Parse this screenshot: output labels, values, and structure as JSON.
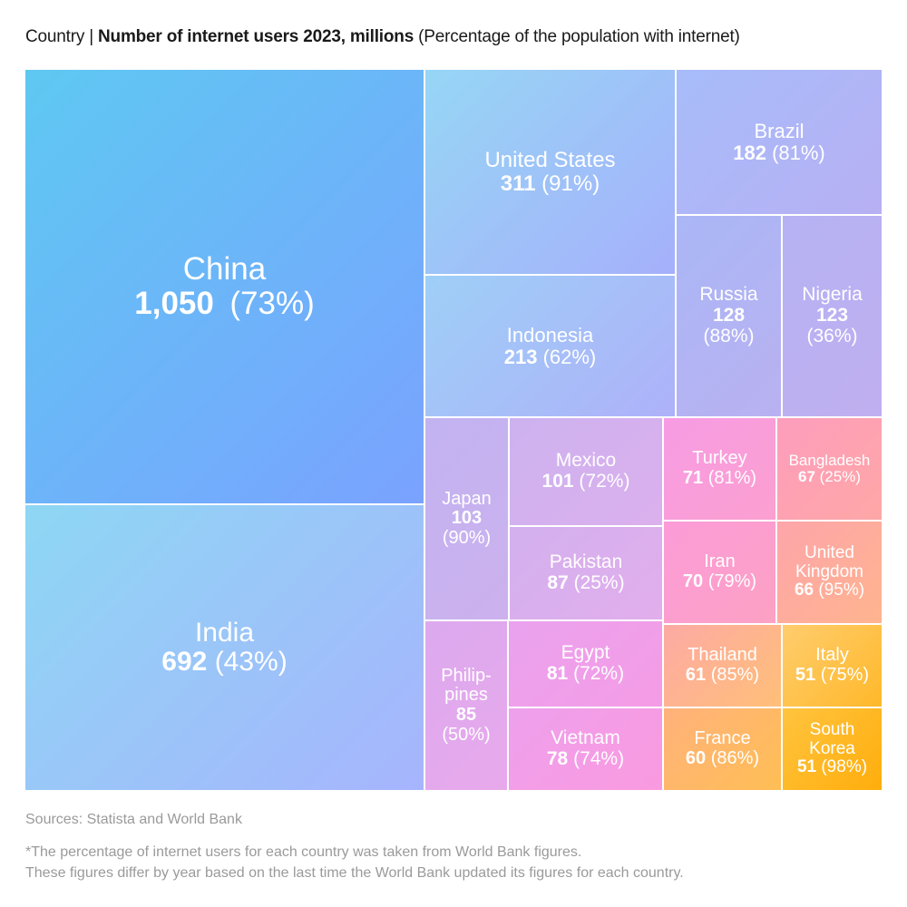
{
  "title": {
    "prefix": "Country | ",
    "bold": "Number of internet users 2023, millions",
    "suffix": " (Percentage of the population with internet)"
  },
  "chart_data": {
    "type": "treemap",
    "unit": "millions",
    "items": [
      {
        "name": "China",
        "label": "China",
        "value": 1050,
        "value_label": "1,050",
        "pct": "(73%)",
        "colors": [
          "#5ec8f2",
          "#7aa2ff"
        ]
      },
      {
        "name": "India",
        "label": "India",
        "value": 692,
        "value_label": "692",
        "pct": "(43%)",
        "colors": [
          "#8ed7f4",
          "#a7b4fd"
        ]
      },
      {
        "name": "United States",
        "label": "United States",
        "value": 311,
        "value_label": "311",
        "pct": "(91%)",
        "colors": [
          "#96d6f5",
          "#a6b0fb"
        ]
      },
      {
        "name": "Indonesia",
        "label": "Indonesia",
        "value": 213,
        "value_label": "213",
        "pct": "(62%)",
        "colors": [
          "#9ecff7",
          "#aeb1f9"
        ]
      },
      {
        "name": "Brazil",
        "label": "Brazil",
        "value": 182,
        "value_label": "182",
        "pct": "(81%)",
        "colors": [
          "#a7bcfa",
          "#b7b0f3"
        ]
      },
      {
        "name": "Russia",
        "label": "Russia",
        "value": 128,
        "value_label": "128",
        "pct": "(88%)",
        "colors": [
          "#aab7f6",
          "#b9b1f1"
        ]
      },
      {
        "name": "Nigeria",
        "label": "Nigeria",
        "value": 123,
        "value_label": "123",
        "pct": "(36%)",
        "colors": [
          "#b5b2f3",
          "#c0aff0"
        ]
      },
      {
        "name": "Japan",
        "label": "Japan",
        "value": 103,
        "value_label": "103",
        "pct": "(90%)",
        "colors": [
          "#c2b3f0",
          "#ccb1ee"
        ]
      },
      {
        "name": "Mexico",
        "label": "Mexico",
        "value": 101,
        "value_label": "101",
        "pct": "(72%)",
        "colors": [
          "#cdb2ef",
          "#dbb0ed"
        ]
      },
      {
        "name": "Pakistan",
        "label": "Pakistan",
        "value": 87,
        "value_label": "87",
        "pct": "(25%)",
        "colors": [
          "#d3b0ee",
          "#e2aeec"
        ]
      },
      {
        "name": "Philippines",
        "label": "Philip-\npines",
        "value": 85,
        "value_label": "85",
        "pct": "(50%)",
        "colors": [
          "#dca9ee",
          "#e8a9ec"
        ]
      },
      {
        "name": "Egypt",
        "label": "Egypt",
        "value": 81,
        "value_label": "81",
        "pct": "(72%)",
        "colors": [
          "#eaa2ee",
          "#f59ce5"
        ]
      },
      {
        "name": "Vietnam",
        "label": "Vietnam",
        "value": 78,
        "value_label": "78",
        "pct": "(74%)",
        "colors": [
          "#eea0ec",
          "#fa9ae0"
        ]
      },
      {
        "name": "Turkey",
        "label": "Turkey",
        "value": 71,
        "value_label": "71",
        "pct": "(81%)",
        "colors": [
          "#f79ce4",
          "#fc9fd0"
        ]
      },
      {
        "name": "Bangladesh",
        "label": "Bangladesh",
        "value": 67,
        "value_label": "67",
        "pct": "(25%)",
        "colors": [
          "#fd9dbd",
          "#fea7a6"
        ]
      },
      {
        "name": "Iran",
        "label": "Iran",
        "value": 70,
        "value_label": "70",
        "pct": "(79%)",
        "colors": [
          "#fb9cd8",
          "#fda1c4"
        ]
      },
      {
        "name": "United Kingdom",
        "label": "United\nKingdom",
        "value": 66,
        "value_label": "66",
        "pct": "(95%)",
        "colors": [
          "#fea5ab",
          "#ffb48e"
        ]
      },
      {
        "name": "Thailand",
        "label": "Thailand",
        "value": 61,
        "value_label": "61",
        "pct": "(85%)",
        "colors": [
          "#fdaaa4",
          "#ffbf78"
        ]
      },
      {
        "name": "Italy",
        "label": "Italy",
        "value": 51,
        "value_label": "51",
        "pct": "(75%)",
        "colors": [
          "#ffcd6e",
          "#ffb82a"
        ]
      },
      {
        "name": "France",
        "label": "France",
        "value": 60,
        "value_label": "60",
        "pct": "(86%)",
        "colors": [
          "#ffb27c",
          "#ffbe54"
        ]
      },
      {
        "name": "South Korea",
        "label": "South\nKorea",
        "value": 51,
        "value_label": "51",
        "pct": "(98%)",
        "colors": [
          "#ffc43f",
          "#ffad0c"
        ]
      }
    ]
  },
  "sources": "Sources: Statista and World Bank",
  "footnote": [
    "*The percentage of internet users for each country was taken from World Bank figures.",
    "These figures differ by year based on the last time the World Bank updated its figures for each country."
  ]
}
